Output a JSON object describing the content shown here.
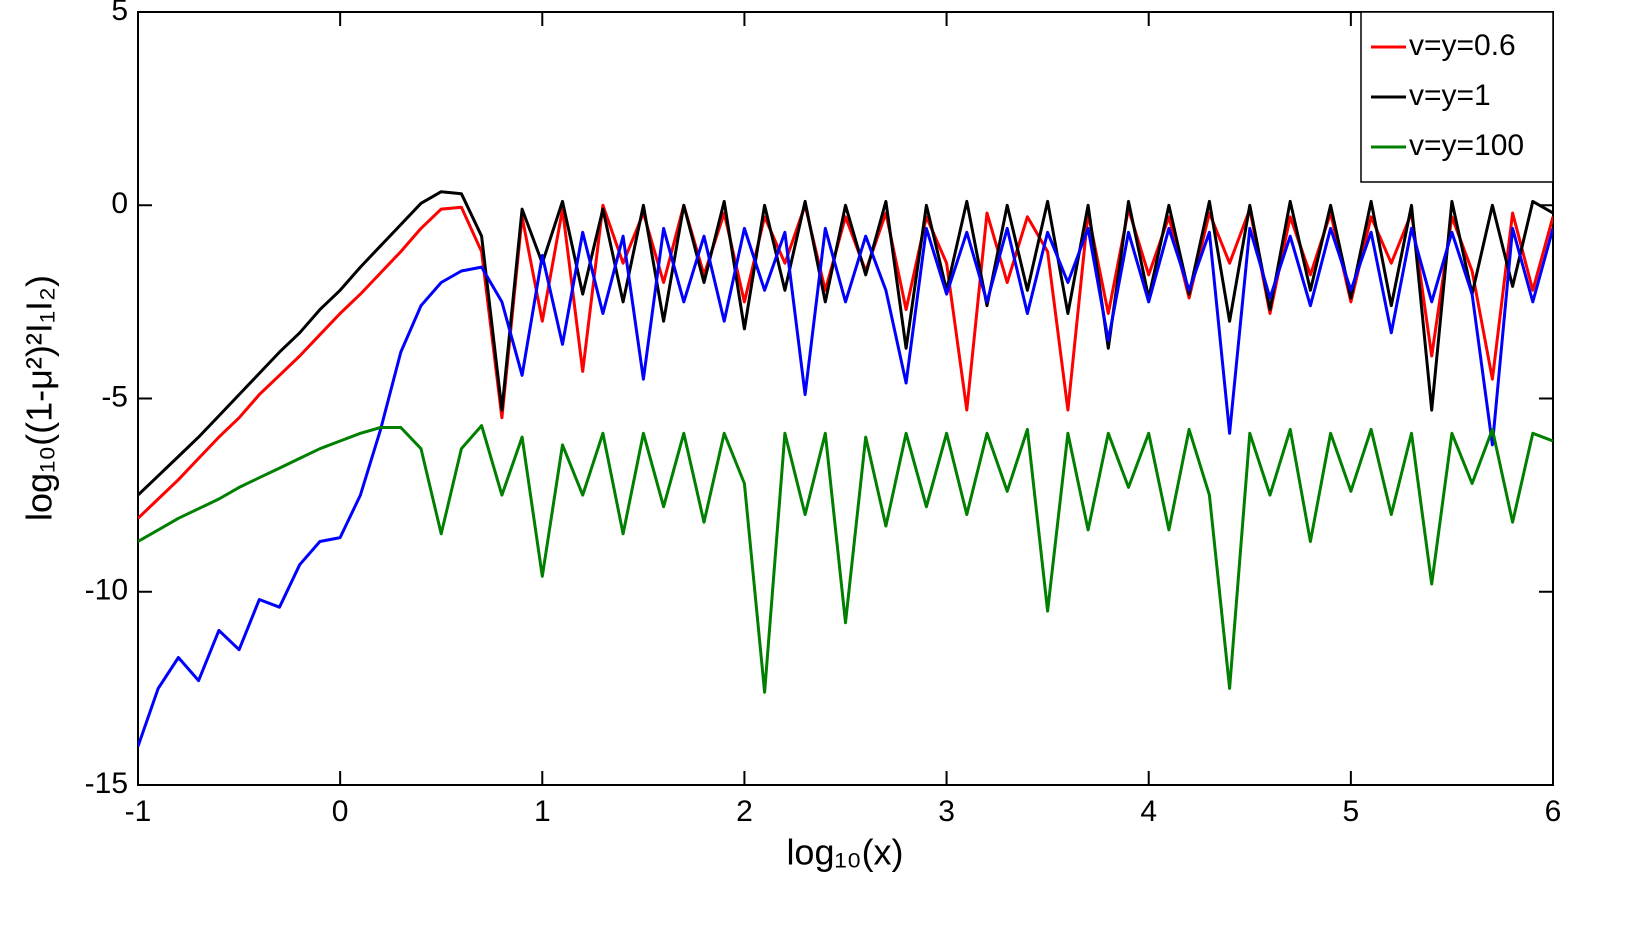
{
  "chart_data": {
    "type": "line",
    "x_label": "log₁₀(x)",
    "y_label": "log₁₀((1-μ²)²I₁I₂)",
    "xlim": [
      -1,
      6
    ],
    "xticks": [
      -1,
      0,
      1,
      2,
      3,
      4,
      5,
      6
    ],
    "ylim": [
      -15,
      5
    ],
    "yticks": [
      -15,
      -10,
      -5,
      0,
      5
    ],
    "grid": false,
    "legend": "upper-right",
    "x": [
      -1,
      -0.9,
      -0.8,
      -0.7,
      -0.6,
      -0.5,
      -0.4,
      -0.3,
      -0.2,
      -0.1,
      0,
      0.1,
      0.2,
      0.3,
      0.4,
      0.5,
      0.6,
      0.7,
      0.8,
      0.9,
      1,
      1.1,
      1.2,
      1.3,
      1.4,
      1.5,
      1.6,
      1.7,
      1.8,
      1.9,
      2,
      2.1,
      2.2,
      2.3,
      2.4,
      2.5,
      2.6,
      2.7,
      2.8,
      2.9,
      3,
      3.1,
      3.2,
      3.3,
      3.4,
      3.5,
      3.6,
      3.7,
      3.8,
      3.9,
      4,
      4.1,
      4.2,
      4.3,
      4.4,
      4.5,
      4.6,
      4.7,
      4.8,
      4.9,
      5,
      5.1,
      5.2,
      5.3,
      5.4,
      5.5,
      5.6,
      5.7,
      5.8,
      5.9,
      6
    ],
    "series": [
      {
        "name": "v=y=0.6",
        "color": "#ff0000",
        "values": [
          -8.1,
          -7.6,
          -7.1,
          -6.55,
          -6.0,
          -5.5,
          -4.9,
          -4.4,
          -3.9,
          -3.35,
          -2.8,
          -2.3,
          -1.75,
          -1.2,
          -0.6,
          -0.1,
          -0.05,
          -1.2,
          -5.5,
          -0.3,
          -3.0,
          -0.1,
          -4.3,
          0,
          -1.5,
          -0.2,
          -2,
          0,
          -1.8,
          -0.2,
          -2.5,
          -0.3,
          -1.5,
          0,
          -2.2,
          -0.3,
          -1.7,
          -0.2,
          -2.7,
          -0.3,
          -1.5,
          -5.3,
          -0.2,
          -2,
          -0.3,
          -1.2,
          -5.3,
          -0.2,
          -2.8,
          -0.1,
          -1.8,
          -0.3,
          -2.4,
          -0.2,
          -1.5,
          -0.1,
          -2.8,
          -0.3,
          -1.8,
          -0.2,
          -2.5,
          -0.3,
          -1.5,
          -0.2,
          -3.9,
          -0.3,
          -1.7,
          -4.5,
          -0.2,
          -2.2,
          -0.3
        ]
      },
      {
        "name": "v=y=1",
        "color": "#000000",
        "values": [
          -7.5,
          -7.0,
          -6.5,
          -6.0,
          -5.45,
          -4.9,
          -4.35,
          -3.8,
          -3.3,
          -2.7,
          -2.2,
          -1.6,
          -1.05,
          -0.5,
          0.05,
          0.35,
          0.3,
          -0.8,
          -5.3,
          -0.1,
          -1.5,
          0.1,
          -2.3,
          -0.1,
          -2.5,
          0,
          -3,
          0,
          -2,
          0.1,
          -3.2,
          0,
          -2.2,
          0.1,
          -2.5,
          0,
          -1.8,
          0.1,
          -3.7,
          0,
          -2.2,
          0.1,
          -2.6,
          0,
          -2.2,
          0.1,
          -2.8,
          0,
          -3.7,
          0.1,
          -2.4,
          0,
          -2.3,
          0.1,
          -3,
          0,
          -2.7,
          0.1,
          -2.2,
          0,
          -2.4,
          0.1,
          -2.6,
          0,
          -5.3,
          0.1,
          -2.3,
          0,
          -2.1,
          0.1,
          -0.2
        ]
      },
      {
        "color": "#0000ff",
        "values": [
          -14,
          -12.5,
          -11.7,
          -12.3,
          -11,
          -11.5,
          -10.2,
          -10.4,
          -9.3,
          -8.7,
          -8.6,
          -7.5,
          -5.8,
          -3.8,
          -2.6,
          -2.0,
          -1.7,
          -1.6,
          -2.5,
          -4.4,
          -1.3,
          -3.6,
          -0.7,
          -2.8,
          -0.8,
          -4.5,
          -0.6,
          -2.5,
          -0.8,
          -3,
          -0.6,
          -2.2,
          -0.7,
          -4.9,
          -0.6,
          -2.5,
          -0.8,
          -2.2,
          -4.6,
          -0.6,
          -2.3,
          -0.7,
          -2.5,
          -0.6,
          -2.8,
          -0.7,
          -2,
          -0.6,
          -3.5,
          -0.7,
          -2.5,
          -0.6,
          -2.2,
          -0.7,
          -5.9,
          -0.6,
          -2.4,
          -0.8,
          -2.6,
          -0.6,
          -2.2,
          -0.7,
          -3.3,
          -0.6,
          -2.5,
          -0.7,
          -2.3,
          -6.2,
          -0.6,
          -2.5,
          -0.6
        ]
      },
      {
        "name": "v=y=100",
        "color": "#007f00",
        "values": [
          -8.7,
          -8.4,
          -8.1,
          -7.85,
          -7.6,
          -7.3,
          -7.05,
          -6.8,
          -6.55,
          -6.3,
          -6.1,
          -5.9,
          -5.75,
          -5.75,
          -6.3,
          -8.5,
          -6.3,
          -5.7,
          -7.5,
          -6.0,
          -9.6,
          -6.2,
          -7.5,
          -5.9,
          -8.5,
          -5.9,
          -7.8,
          -5.9,
          -8.2,
          -5.9,
          -7.2,
          -12.6,
          -5.9,
          -8.0,
          -5.9,
          -10.8,
          -6.0,
          -8.3,
          -5.9,
          -7.8,
          -5.9,
          -8.0,
          -5.9,
          -7.4,
          -5.8,
          -10.5,
          -5.9,
          -8.4,
          -5.9,
          -7.3,
          -5.9,
          -8.4,
          -5.8,
          -7.5,
          -12.5,
          -5.9,
          -7.5,
          -5.8,
          -8.7,
          -5.9,
          -7.4,
          -5.8,
          -8.0,
          -5.9,
          -9.8,
          -5.9,
          -7.2,
          -5.8,
          -8.2,
          -5.9,
          -6.1
        ]
      }
    ]
  }
}
